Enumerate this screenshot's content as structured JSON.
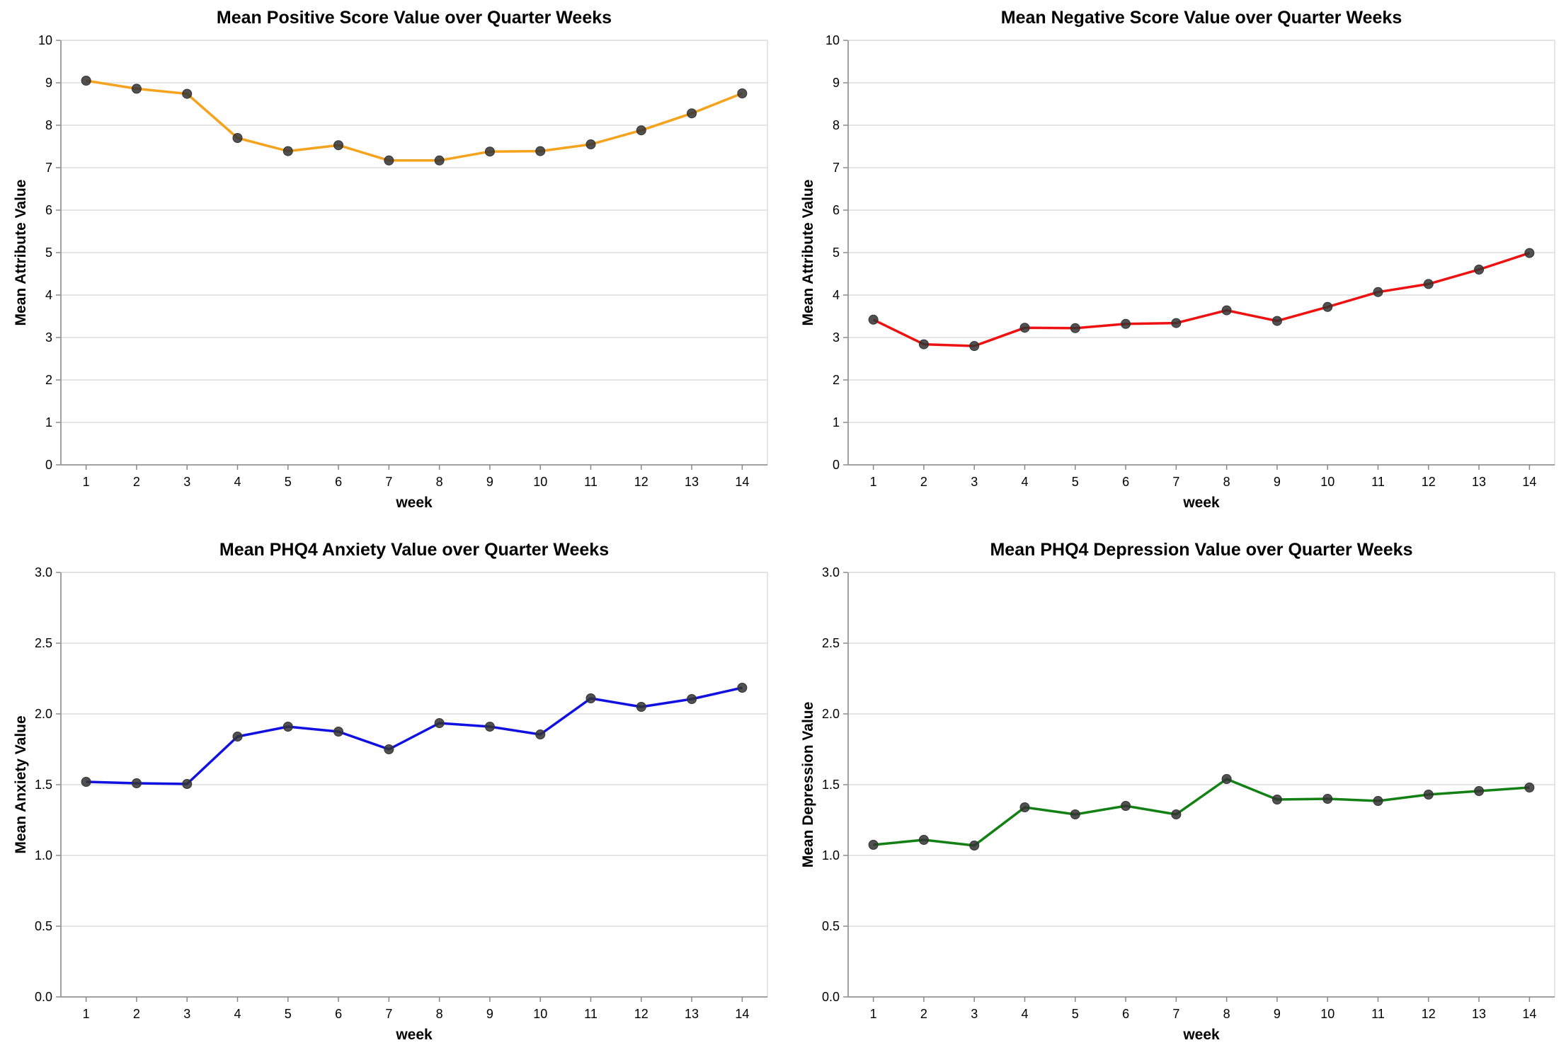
{
  "chart_data": [
    {
      "type": "line",
      "title": "Mean Positive Score Value over Quarter Weeks",
      "xlabel": "week",
      "ylabel": "Mean Attribute Value",
      "x": [
        1,
        2,
        3,
        4,
        5,
        6,
        7,
        8,
        9,
        10,
        11,
        12,
        13,
        14
      ],
      "values": [
        9.05,
        8.86,
        8.74,
        7.7,
        7.39,
        7.53,
        7.17,
        7.17,
        7.38,
        7.39,
        7.55,
        7.88,
        8.28,
        8.75
      ],
      "ylim": [
        0,
        10
      ],
      "yticks": [
        "0",
        "1",
        "2",
        "3",
        "4",
        "5",
        "6",
        "7",
        "8",
        "9",
        "10"
      ],
      "color": "#f5a21c",
      "grid": true
    },
    {
      "type": "line",
      "title": "Mean Negative Score Value over Quarter Weeks",
      "xlabel": "week",
      "ylabel": "Mean Attribute Value",
      "x": [
        1,
        2,
        3,
        4,
        5,
        6,
        7,
        8,
        9,
        10,
        11,
        12,
        13,
        14
      ],
      "values": [
        3.42,
        2.84,
        2.8,
        3.23,
        3.22,
        3.32,
        3.34,
        3.64,
        3.39,
        3.72,
        4.07,
        4.26,
        4.6,
        4.99
      ],
      "ylim": [
        0,
        10
      ],
      "yticks": [
        "0",
        "1",
        "2",
        "3",
        "4",
        "5",
        "6",
        "7",
        "8",
        "9",
        "10"
      ],
      "color": "#ee1111",
      "grid": true
    },
    {
      "type": "line",
      "title": "Mean PHQ4 Anxiety Value over Quarter Weeks",
      "xlabel": "week",
      "ylabel": "Mean Anxiety Value",
      "x": [
        1,
        2,
        3,
        4,
        5,
        6,
        7,
        8,
        9,
        10,
        11,
        12,
        13,
        14
      ],
      "values": [
        1.52,
        1.51,
        1.505,
        1.84,
        1.91,
        1.875,
        1.75,
        1.935,
        1.91,
        1.855,
        2.11,
        2.05,
        2.105,
        2.185
      ],
      "ylim": [
        0,
        3
      ],
      "yticks": [
        "0.0",
        "0.5",
        "1.0",
        "1.5",
        "2.0",
        "2.5",
        "3.0"
      ],
      "color": "#1010e0",
      "grid": true
    },
    {
      "type": "line",
      "title": "Mean PHQ4 Depression Value over Quarter Weeks",
      "xlabel": "week",
      "ylabel": "Mean Depression Value",
      "x": [
        1,
        2,
        3,
        4,
        5,
        6,
        7,
        8,
        9,
        10,
        11,
        12,
        13,
        14
      ],
      "values": [
        1.075,
        1.11,
        1.07,
        1.34,
        1.29,
        1.35,
        1.29,
        1.54,
        1.395,
        1.4,
        1.385,
        1.43,
        1.455,
        1.48
      ],
      "ylim": [
        0,
        3
      ],
      "yticks": [
        "0.0",
        "0.5",
        "1.0",
        "1.5",
        "2.0",
        "2.5",
        "3.0"
      ],
      "color": "#138013",
      "grid": true
    }
  ]
}
